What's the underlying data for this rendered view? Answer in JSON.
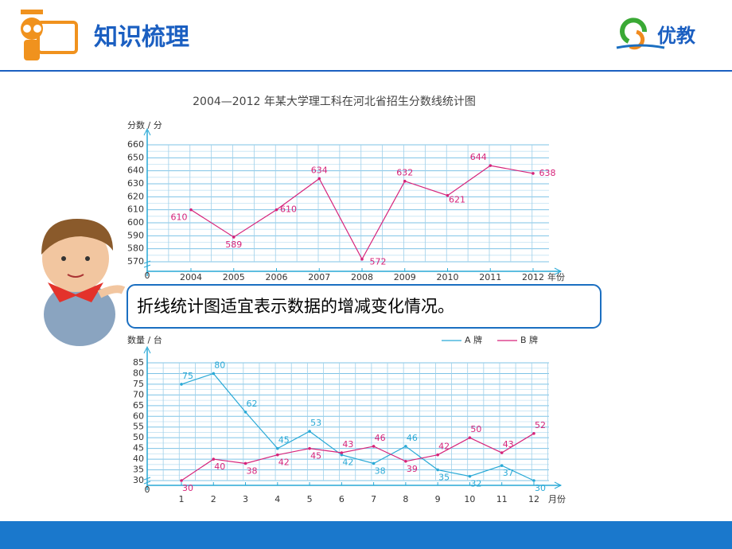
{
  "header": {
    "title": "知识梳理",
    "logo": "优教"
  },
  "callout": "折线统计图适宜表示数据的增减变化情况。",
  "chart_data": [
    {
      "type": "line",
      "title": "2004—2012 年某大学理工科在河北省招生分数线统计图",
      "y_label": "分数 / 分",
      "x_label": "年份",
      "origin": 0,
      "categories": [
        "2004",
        "2005",
        "2006",
        "2007",
        "2008",
        "2009",
        "2010",
        "2011",
        "2012"
      ],
      "values": [
        610,
        589,
        610,
        634,
        572,
        632,
        621,
        644,
        638
      ],
      "color": "#d6237a",
      "ylim": [
        570,
        660
      ],
      "yticks": [
        570,
        580,
        590,
        600,
        610,
        620,
        630,
        640,
        650,
        660
      ],
      "grid": true,
      "axis_break": true
    },
    {
      "type": "line",
      "y_label": "数量 / 台",
      "x_label": "月份",
      "origin": 0,
      "categories": [
        "1",
        "2",
        "3",
        "4",
        "5",
        "6",
        "7",
        "8",
        "9",
        "10",
        "11",
        "12"
      ],
      "series": [
        {
          "name": "A 牌",
          "color": "#29a9d6",
          "values": [
            75,
            80,
            62,
            45,
            53,
            42,
            38,
            46,
            35,
            32,
            37,
            30
          ]
        },
        {
          "name": "B 牌",
          "color": "#d6237a",
          "values": [
            30,
            40,
            38,
            42,
            45,
            43,
            46,
            39,
            42,
            50,
            43,
            52
          ]
        }
      ],
      "ylim": [
        30,
        85
      ],
      "yticks": [
        30,
        35,
        40,
        45,
        50,
        55,
        60,
        65,
        70,
        75,
        80,
        85
      ],
      "grid": true,
      "axis_break": true,
      "legend": "top-right"
    }
  ]
}
